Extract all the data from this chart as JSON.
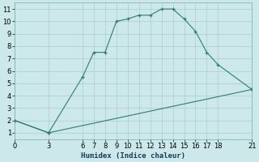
{
  "line1_x": [
    0,
    3,
    6,
    7,
    8,
    9,
    10,
    11,
    12,
    13,
    14,
    15,
    16,
    17,
    18,
    21
  ],
  "line1_y": [
    2,
    1,
    5.5,
    7.5,
    7.5,
    10,
    10.2,
    10.5,
    10.5,
    11,
    11,
    10.2,
    9.2,
    7.5,
    6.5,
    4.5
  ],
  "line2_x": [
    0,
    3,
    21
  ],
  "line2_y": [
    2,
    1,
    4.5
  ],
  "color": "#2e7d6e",
  "bg_color": "#cce8ea",
  "grid_color": "#aacdd0",
  "xlabel": "Humidex (Indice chaleur)",
  "xticks": [
    0,
    3,
    6,
    7,
    8,
    9,
    10,
    11,
    12,
    13,
    14,
    15,
    16,
    17,
    18,
    21
  ],
  "yticks": [
    1,
    2,
    3,
    4,
    5,
    6,
    7,
    8,
    9,
    10,
    11
  ],
  "xlim": [
    0,
    21
  ],
  "ylim": [
    0.5,
    11.5
  ],
  "label_fontsize": 6.5,
  "tick_fontsize": 6.0
}
